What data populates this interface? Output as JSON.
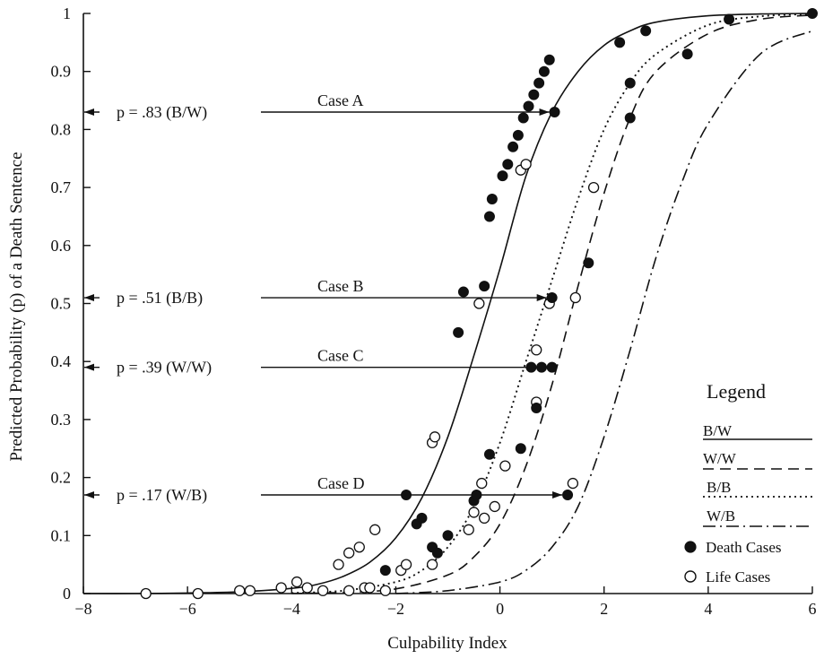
{
  "chart_data": {
    "type": "line",
    "xlabel": "Culpability Index",
    "ylabel": "Predicted Probability (p) of a Death Sentence",
    "xlim": [
      -8,
      6
    ],
    "ylim": [
      0,
      1
    ],
    "x_ticks": [
      -8,
      -6,
      -4,
      -2,
      0,
      2,
      4,
      6
    ],
    "x_tick_labels": [
      "−8",
      "−6",
      "−4",
      "−2",
      "0",
      "2",
      "4",
      "6"
    ],
    "y_ticks": [
      0,
      0.1,
      0.2,
      0.3,
      0.4,
      0.5,
      0.6,
      0.7,
      0.8,
      0.9,
      1
    ],
    "y_tick_labels": [
      "0",
      "0.1",
      "0.2",
      "0.3",
      "0.4",
      "0.5",
      "0.6",
      "0.7",
      "0.8",
      "0.9",
      "1"
    ],
    "grid": false,
    "legend": {
      "title": "Legend",
      "placement": "bottom-right",
      "entries": [
        {
          "label": "B/W",
          "style": "solid"
        },
        {
          "label": "W/W",
          "style": "dashed"
        },
        {
          "label": "B/B",
          "style": "dotted"
        },
        {
          "label": "W/B",
          "style": "dashdot"
        },
        {
          "label": "Death Cases",
          "marker": "filled-circle"
        },
        {
          "label": "Life Cases",
          "marker": "open-circle"
        }
      ]
    },
    "series": [
      {
        "name": "B/W",
        "style": "solid",
        "x": [
          -8,
          -7,
          -6,
          -5,
          -4,
          -3.5,
          -3,
          -2.5,
          -2,
          -1.5,
          -1,
          -0.5,
          0,
          0.5,
          1,
          1.5,
          2,
          2.5,
          3,
          4,
          5,
          6
        ],
        "y": [
          0,
          0,
          0.001,
          0.003,
          0.009,
          0.016,
          0.03,
          0.054,
          0.096,
          0.165,
          0.27,
          0.41,
          0.56,
          0.72,
          0.83,
          0.9,
          0.945,
          0.97,
          0.985,
          0.996,
          0.999,
          1.0
        ]
      },
      {
        "name": "W/W",
        "style": "dashed",
        "x": [
          -4,
          -3,
          -2,
          -1,
          -0.5,
          0,
          0.5,
          1,
          1.5,
          2,
          2.5,
          3,
          4,
          5,
          6
        ],
        "y": [
          0,
          0.002,
          0.008,
          0.032,
          0.063,
          0.12,
          0.22,
          0.36,
          0.53,
          0.69,
          0.82,
          0.9,
          0.965,
          0.99,
          0.997
        ]
      },
      {
        "name": "B/B",
        "style": "dotted",
        "x": [
          -4,
          -3,
          -2,
          -1.5,
          -1,
          -0.5,
          0,
          0.5,
          1,
          1.5,
          2,
          2.5,
          3,
          4,
          5,
          6
        ],
        "y": [
          0.001,
          0.005,
          0.02,
          0.04,
          0.08,
          0.15,
          0.26,
          0.4,
          0.54,
          0.68,
          0.8,
          0.88,
          0.93,
          0.98,
          0.995,
          0.999
        ]
      },
      {
        "name": "W/B",
        "style": "dashdot",
        "x": [
          -2,
          -1,
          0,
          0.5,
          1,
          1.5,
          2,
          2.5,
          3,
          3.5,
          4,
          5,
          6
        ],
        "y": [
          0,
          0.005,
          0.02,
          0.04,
          0.08,
          0.15,
          0.27,
          0.42,
          0.58,
          0.71,
          0.81,
          0.93,
          0.97
        ]
      }
    ],
    "death_cases": [
      [
        -1.8,
        0.17
      ],
      [
        -1.6,
        0.12
      ],
      [
        -1.5,
        0.13
      ],
      [
        -0.8,
        0.45
      ],
      [
        -0.7,
        0.52
      ],
      [
        -0.3,
        0.53
      ],
      [
        -0.2,
        0.65
      ],
      [
        -0.15,
        0.68
      ],
      [
        0.05,
        0.72
      ],
      [
        0.15,
        0.74
      ],
      [
        0.25,
        0.77
      ],
      [
        0.35,
        0.79
      ],
      [
        0.45,
        0.82
      ],
      [
        0.55,
        0.84
      ],
      [
        0.65,
        0.86
      ],
      [
        0.75,
        0.88
      ],
      [
        0.85,
        0.9
      ],
      [
        0.95,
        0.92
      ],
      [
        1.05,
        0.83
      ],
      [
        2.3,
        0.95
      ],
      [
        2.8,
        0.97
      ],
      [
        4.4,
        0.99
      ],
      [
        6.0,
        1.0
      ],
      [
        -1.3,
        0.08
      ],
      [
        -1.2,
        0.07
      ],
      [
        -1.0,
        0.1
      ],
      [
        -2.2,
        0.04
      ],
      [
        -0.5,
        0.16
      ],
      [
        -0.45,
        0.17
      ],
      [
        -0.2,
        0.24
      ],
      [
        0.6,
        0.39
      ],
      [
        0.8,
        0.39
      ],
      [
        1.0,
        0.39
      ],
      [
        1.0,
        0.51
      ],
      [
        0.4,
        0.25
      ],
      [
        0.7,
        0.32
      ],
      [
        1.7,
        0.57
      ],
      [
        2.5,
        0.88
      ],
      [
        2.5,
        0.82
      ],
      [
        3.6,
        0.93
      ],
      [
        1.3,
        0.17
      ]
    ],
    "life_cases": [
      [
        -6.8,
        0.0
      ],
      [
        -5.8,
        0.0
      ],
      [
        -5.0,
        0.005
      ],
      [
        -4.8,
        0.005
      ],
      [
        -4.2,
        0.01
      ],
      [
        -3.9,
        0.02
      ],
      [
        -3.1,
        0.05
      ],
      [
        -2.9,
        0.07
      ],
      [
        -2.7,
        0.08
      ],
      [
        -2.4,
        0.11
      ],
      [
        -1.3,
        0.26
      ],
      [
        -1.25,
        0.27
      ],
      [
        -0.4,
        0.5
      ],
      [
        0.4,
        0.73
      ],
      [
        0.5,
        0.74
      ],
      [
        -3.7,
        0.01
      ],
      [
        -3.4,
        0.005
      ],
      [
        -2.9,
        0.005
      ],
      [
        -2.6,
        0.01
      ],
      [
        -2.2,
        0.005
      ],
      [
        -1.9,
        0.04
      ],
      [
        -1.8,
        0.05
      ],
      [
        -1.3,
        0.05
      ],
      [
        -0.6,
        0.11
      ],
      [
        -0.5,
        0.14
      ],
      [
        -0.35,
        0.19
      ],
      [
        0.1,
        0.22
      ],
      [
        -0.1,
        0.15
      ],
      [
        0.7,
        0.42
      ],
      [
        0.95,
        0.5
      ],
      [
        1.45,
        0.51
      ],
      [
        1.8,
        0.7
      ],
      [
        0.7,
        0.33
      ],
      [
        1.4,
        0.19
      ],
      [
        -0.3,
        0.13
      ],
      [
        -2.5,
        0.01
      ]
    ],
    "annotations": [
      {
        "label": "p  =  .83 (B/W)",
        "case": "Case A",
        "y": 0.83,
        "x_end": 1.05
      },
      {
        "label": "p  =  .51 (B/B)",
        "case": "Case B",
        "y": 0.51,
        "x_end": 1.0
      },
      {
        "label": "p  =  .39 (W/W)",
        "case": "Case C",
        "y": 0.39,
        "x_end": 1.05
      },
      {
        "label": "p  =  .17 (W/B)",
        "case": "Case D",
        "y": 0.17,
        "x_end": 1.3
      }
    ]
  },
  "colors": {
    "ink": "#111111",
    "background": "#ffffff"
  }
}
